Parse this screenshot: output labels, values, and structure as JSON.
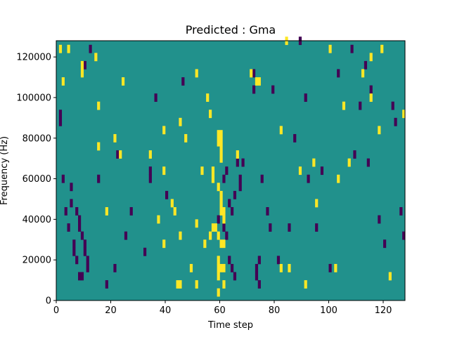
{
  "chart_data": {
    "type": "heatmap",
    "title": "Predicted : Gma",
    "xlabel": "Time step",
    "ylabel": "Frequency (Hz)",
    "xlim": [
      0,
      128
    ],
    "ylim": [
      0,
      128000
    ],
    "x_ticks": [
      0,
      20,
      40,
      60,
      80,
      100,
      120
    ],
    "y_ticks": [
      0,
      20000,
      40000,
      60000,
      80000,
      100000,
      120000
    ],
    "x_tick_labels": [
      "0",
      "20",
      "40",
      "60",
      "80",
      "100",
      "120"
    ],
    "y_tick_labels": [
      "0",
      "20000",
      "40000",
      "60000",
      "80000",
      "100000",
      "120000"
    ],
    "grid": false,
    "colormap": "viridis",
    "value_levels": [
      -1,
      0,
      1
    ],
    "colors": {
      "negative": "#440154",
      "neutral": "#21918c",
      "positive": "#fde725"
    },
    "cell_height_hz": 4000,
    "positive_cells": [
      [
        2,
        122000
      ],
      [
        3,
        106000
      ],
      [
        5,
        122000
      ],
      [
        10,
        114000
      ],
      [
        10,
        110000
      ],
      [
        15,
        118000
      ],
      [
        16,
        94000
      ],
      [
        16,
        74000
      ],
      [
        40,
        82000
      ],
      [
        25,
        106000
      ],
      [
        46,
        86000
      ],
      [
        48,
        78000
      ],
      [
        52,
        110000
      ],
      [
        56,
        98000
      ],
      [
        57,
        90000
      ],
      [
        43,
        46000
      ],
      [
        44,
        42000
      ],
      [
        52,
        36000
      ],
      [
        57,
        30000
      ],
      [
        55,
        26000
      ],
      [
        50,
        14000
      ],
      [
        52,
        6000
      ],
      [
        45,
        6000
      ],
      [
        46,
        6000
      ],
      [
        60,
        80000
      ],
      [
        60,
        76000
      ],
      [
        61,
        80000
      ],
      [
        61,
        76000
      ],
      [
        61,
        72000
      ],
      [
        61,
        68000
      ],
      [
        58,
        62000
      ],
      [
        58,
        58000
      ],
      [
        60,
        54000
      ],
      [
        61,
        50000
      ],
      [
        61,
        46000
      ],
      [
        61,
        42000
      ],
      [
        62,
        42000
      ],
      [
        62,
        38000
      ],
      [
        58,
        34000
      ],
      [
        59,
        34000
      ],
      [
        60,
        30000
      ],
      [
        61,
        26000
      ],
      [
        62,
        26000
      ],
      [
        60,
        18000
      ],
      [
        60,
        14000
      ],
      [
        61,
        14000
      ],
      [
        62,
        14000
      ],
      [
        60,
        10000
      ],
      [
        62,
        6000
      ],
      [
        60,
        2000
      ],
      [
        67,
        70000
      ],
      [
        72,
        110000
      ],
      [
        74,
        106000
      ],
      [
        75,
        106000
      ],
      [
        85,
        126000
      ],
      [
        83,
        82000
      ],
      [
        90,
        62000
      ],
      [
        95,
        66000
      ],
      [
        96,
        46000
      ],
      [
        92,
        6000
      ],
      [
        86,
        14000
      ],
      [
        83,
        14000
      ],
      [
        106,
        94000
      ],
      [
        108,
        66000
      ],
      [
        113,
        110000
      ],
      [
        116,
        118000
      ],
      [
        119,
        82000
      ],
      [
        120,
        122000
      ],
      [
        123,
        10000
      ],
      [
        128,
        90000
      ],
      [
        101,
        122000
      ],
      [
        35,
        70000
      ],
      [
        38,
        38000
      ],
      [
        46,
        30000
      ],
      [
        103,
        14000
      ],
      [
        40,
        26000
      ],
      [
        24,
        70000
      ],
      [
        40,
        62000
      ],
      [
        54,
        62000
      ],
      [
        104,
        58000
      ],
      [
        116,
        98000
      ],
      [
        19,
        42000
      ],
      [
        22,
        78000
      ]
    ],
    "negative_cells": [
      [
        2,
        90000
      ],
      [
        2,
        86000
      ],
      [
        3,
        58000
      ],
      [
        4,
        42000
      ],
      [
        5,
        34000
      ],
      [
        6,
        54000
      ],
      [
        6,
        46000
      ],
      [
        7,
        26000
      ],
      [
        7,
        22000
      ],
      [
        8,
        18000
      ],
      [
        9,
        10000
      ],
      [
        10,
        10000
      ],
      [
        8,
        42000
      ],
      [
        9,
        38000
      ],
      [
        9,
        34000
      ],
      [
        10,
        30000
      ],
      [
        11,
        26000
      ],
      [
        11,
        22000
      ],
      [
        12,
        18000
      ],
      [
        12,
        14000
      ],
      [
        11,
        114000
      ],
      [
        13,
        122000
      ],
      [
        16,
        58000
      ],
      [
        19,
        6000
      ],
      [
        22,
        14000
      ],
      [
        23,
        70000
      ],
      [
        26,
        30000
      ],
      [
        28,
        42000
      ],
      [
        33,
        22000
      ],
      [
        35,
        62000
      ],
      [
        35,
        58000
      ],
      [
        37,
        98000
      ],
      [
        41,
        50000
      ],
      [
        47,
        106000
      ],
      [
        60,
        38000
      ],
      [
        62,
        34000
      ],
      [
        63,
        30000
      ],
      [
        64,
        46000
      ],
      [
        65,
        42000
      ],
      [
        64,
        18000
      ],
      [
        65,
        14000
      ],
      [
        66,
        10000
      ],
      [
        67,
        66000
      ],
      [
        68,
        58000
      ],
      [
        68,
        54000
      ],
      [
        69,
        66000
      ],
      [
        73,
        102000
      ],
      [
        73,
        110000
      ],
      [
        74,
        14000
      ],
      [
        74,
        10000
      ],
      [
        75,
        18000
      ],
      [
        75,
        6000
      ],
      [
        76,
        58000
      ],
      [
        78,
        42000
      ],
      [
        79,
        34000
      ],
      [
        80,
        102000
      ],
      [
        82,
        18000
      ],
      [
        86,
        34000
      ],
      [
        88,
        78000
      ],
      [
        90,
        126000
      ],
      [
        92,
        98000
      ],
      [
        93,
        58000
      ],
      [
        96,
        34000
      ],
      [
        98,
        62000
      ],
      [
        101,
        14000
      ],
      [
        104,
        110000
      ],
      [
        109,
        122000
      ],
      [
        110,
        70000
      ],
      [
        112,
        94000
      ],
      [
        114,
        114000
      ],
      [
        115,
        66000
      ],
      [
        116,
        102000
      ],
      [
        119,
        38000
      ],
      [
        121,
        26000
      ],
      [
        124,
        94000
      ],
      [
        125,
        86000
      ],
      [
        127,
        42000
      ],
      [
        128,
        30000
      ],
      [
        62,
        58000
      ],
      [
        63,
        62000
      ],
      [
        66,
        50000
      ]
    ]
  }
}
